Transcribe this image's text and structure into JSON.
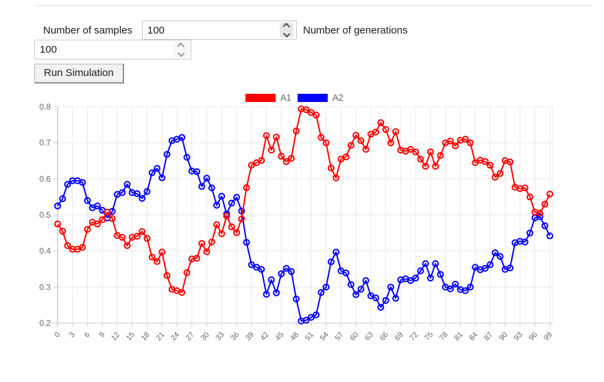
{
  "controls": {
    "samples_label": "Number of samples",
    "samples_value": "100",
    "generations_label": "Number of generations",
    "generations_value": "100",
    "run_button_label": "Run Simulation"
  },
  "colors": {
    "series_a1": "#ff0000",
    "series_a2": "#0000ff",
    "grid": "#e9e9e9",
    "axis": "#b3b3b3",
    "tick_text": "#666666"
  },
  "chart_data": {
    "type": "line",
    "title": "",
    "xlabel": "",
    "ylabel": "",
    "ylim": [
      0.2,
      0.8
    ],
    "grid": true,
    "legend_position": "top",
    "point_style": "open-circle",
    "x": [
      0,
      1,
      2,
      3,
      4,
      5,
      6,
      7,
      8,
      9,
      10,
      11,
      12,
      13,
      14,
      15,
      16,
      17,
      18,
      19,
      20,
      21,
      22,
      23,
      24,
      25,
      26,
      27,
      28,
      29,
      30,
      31,
      32,
      33,
      34,
      35,
      36,
      37,
      38,
      39,
      40,
      41,
      42,
      43,
      44,
      45,
      46,
      47,
      48,
      49,
      50,
      51,
      52,
      53,
      54,
      55,
      56,
      57,
      58,
      59,
      60,
      61,
      62,
      63,
      64,
      65,
      66,
      67,
      68,
      69,
      70,
      71,
      72,
      73,
      74,
      75,
      76,
      77,
      78,
      79,
      80,
      81,
      82,
      83,
      84,
      85,
      86,
      87,
      88,
      89,
      90,
      91,
      92,
      93,
      94,
      95,
      96,
      97,
      98,
      99
    ],
    "x_tick_labels": [
      "0",
      "3",
      "6",
      "9",
      "12",
      "15",
      "18",
      "21",
      "24",
      "27",
      "30",
      "33",
      "36",
      "39",
      "42",
      "45",
      "48",
      "51",
      "54",
      "57",
      "60",
      "63",
      "66",
      "69",
      "72",
      "75",
      "78",
      "81",
      "84",
      "87",
      "90",
      "93",
      "96",
      "99"
    ],
    "y_ticks": [
      0.2,
      0.3,
      0.4,
      0.5,
      0.6,
      0.7,
      0.8
    ],
    "series": [
      {
        "name": "A1",
        "color": "#ff0000",
        "values": [
          0.475,
          0.455,
          0.415,
          0.405,
          0.405,
          0.41,
          0.46,
          0.48,
          0.475,
          0.487,
          0.508,
          0.49,
          0.443,
          0.438,
          0.415,
          0.438,
          0.441,
          0.454,
          0.435,
          0.383,
          0.371,
          0.397,
          0.332,
          0.294,
          0.29,
          0.285,
          0.34,
          0.378,
          0.38,
          0.421,
          0.398,
          0.425,
          0.473,
          0.448,
          0.497,
          0.467,
          0.451,
          0.489,
          0.576,
          0.638,
          0.645,
          0.651,
          0.72,
          0.68,
          0.716,
          0.663,
          0.648,
          0.657,
          0.733,
          0.794,
          0.792,
          0.784,
          0.777,
          0.715,
          0.7,
          0.63,
          0.603,
          0.655,
          0.661,
          0.693,
          0.721,
          0.706,
          0.682,
          0.724,
          0.73,
          0.756,
          0.737,
          0.7,
          0.731,
          0.68,
          0.677,
          0.682,
          0.675,
          0.655,
          0.635,
          0.675,
          0.635,
          0.665,
          0.7,
          0.705,
          0.692,
          0.707,
          0.71,
          0.7,
          0.645,
          0.652,
          0.648,
          0.638,
          0.605,
          0.615,
          0.651,
          0.647,
          0.577,
          0.573,
          0.575,
          0.55,
          0.508,
          0.505,
          0.53,
          0.558
        ]
      },
      {
        "name": "A2",
        "color": "#0000ff",
        "values": [
          0.525,
          0.545,
          0.585,
          0.595,
          0.595,
          0.59,
          0.54,
          0.52,
          0.525,
          0.513,
          0.492,
          0.51,
          0.557,
          0.562,
          0.585,
          0.562,
          0.559,
          0.546,
          0.565,
          0.617,
          0.629,
          0.603,
          0.668,
          0.706,
          0.71,
          0.715,
          0.66,
          0.622,
          0.62,
          0.579,
          0.602,
          0.575,
          0.527,
          0.552,
          0.503,
          0.533,
          0.549,
          0.511,
          0.424,
          0.362,
          0.355,
          0.349,
          0.28,
          0.32,
          0.284,
          0.337,
          0.352,
          0.343,
          0.267,
          0.206,
          0.208,
          0.216,
          0.223,
          0.285,
          0.3,
          0.37,
          0.397,
          0.345,
          0.339,
          0.307,
          0.279,
          0.294,
          0.318,
          0.276,
          0.27,
          0.244,
          0.263,
          0.3,
          0.269,
          0.32,
          0.323,
          0.318,
          0.325,
          0.345,
          0.365,
          0.325,
          0.365,
          0.335,
          0.3,
          0.295,
          0.308,
          0.293,
          0.29,
          0.3,
          0.355,
          0.348,
          0.352,
          0.362,
          0.395,
          0.385,
          0.349,
          0.353,
          0.423,
          0.427,
          0.425,
          0.45,
          0.492,
          0.495,
          0.47,
          0.442
        ]
      }
    ]
  }
}
